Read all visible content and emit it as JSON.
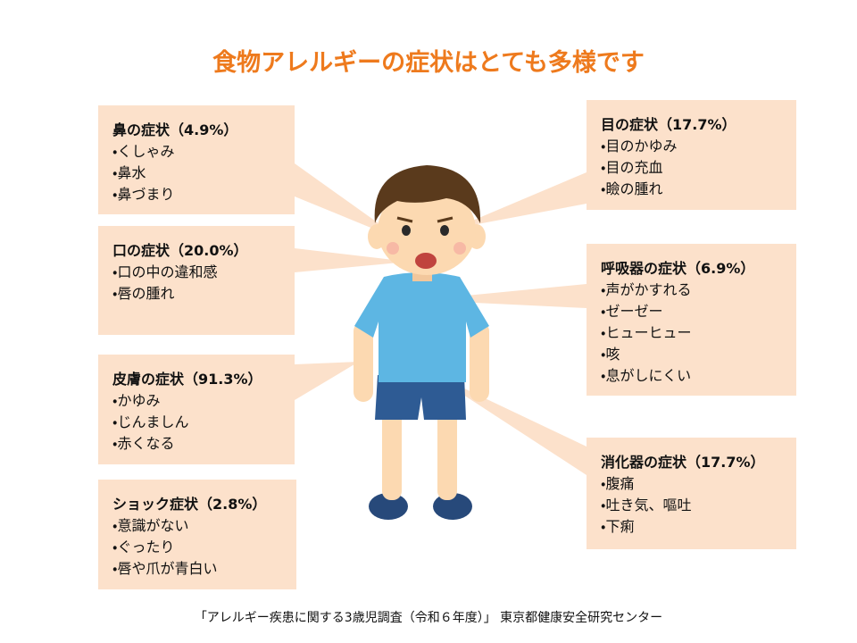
{
  "title": "食物アレルギーの症状はとても多様です",
  "boxes": [
    {
      "heading": "鼻の症状（4.9%）",
      "items": [
        "・くしゃみ",
        "・鼻水",
        "・鼻づまり"
      ]
    },
    {
      "heading": "口の症状（20.0%）",
      "items": [
        "・口の中の違和感",
        "・唇の腫れ"
      ]
    },
    {
      "heading": "皮膚の症状（91.3%）",
      "items": [
        "・かゆみ",
        "・じんましん",
        "・赤くなる"
      ]
    },
    {
      "heading": "ショック症状（2.8%）",
      "items": [
        "・意識がない",
        "・ぐったり",
        "・唇や爪が青白い"
      ]
    },
    {
      "heading": "目の症状（17.7%）",
      "items": [
        "・目のかゆみ",
        "・目の充血",
        "・瞼の腫れ"
      ]
    },
    {
      "heading": "呼吸器の症状（6.9%）",
      "items": [
        "・声がかすれる",
        "・ゼーゼー",
        "・ヒューヒュー",
        "・咳",
        "・息がしにくい"
      ]
    },
    {
      "heading": "消化器の症状（17.7%）",
      "items": [
        "・腹痛",
        "・吐き気、嘔吐",
        "・下痢"
      ]
    }
  ],
  "footer": "「アレルギー疾患に関する3歳児調査（令和６年度）」 東京都健康安全研究センター"
}
